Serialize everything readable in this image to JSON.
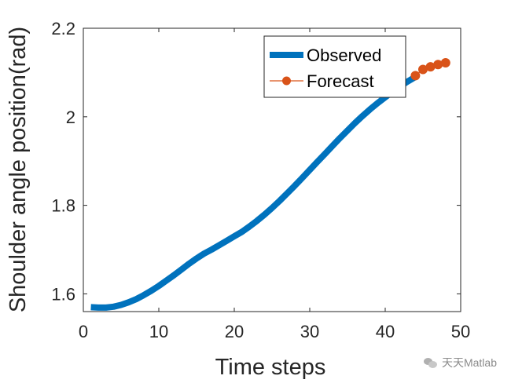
{
  "colors": {
    "observed": "#0072BD",
    "forecast": "#D95319",
    "axis": "#262626",
    "background": "#ffffff"
  },
  "watermark": {
    "text": "天天Matlab",
    "icon": "wechat-icon"
  },
  "chart_data": {
    "type": "line",
    "title": "",
    "xlabel": "Time steps",
    "ylabel": "Shoulder angle position(rad)",
    "xlim": [
      0,
      50
    ],
    "ylim": [
      1.56,
      2.2
    ],
    "xticks": [
      0,
      10,
      20,
      30,
      40,
      50
    ],
    "yticks": [
      1.6,
      1.8,
      2.0,
      2.2
    ],
    "xtick_labels": [
      "0",
      "10",
      "20",
      "30",
      "40",
      "50"
    ],
    "ytick_labels": [
      "1.6",
      "1.8",
      "2",
      "2.2"
    ],
    "grid": false,
    "legend": {
      "position": "top-right",
      "entries": [
        "Observed",
        "Forecast"
      ]
    },
    "series": [
      {
        "name": "Observed",
        "style": "line",
        "x": [
          1,
          2,
          3,
          4,
          5,
          6,
          7,
          8,
          9,
          10,
          11,
          12,
          13,
          14,
          15,
          16,
          17,
          18,
          19,
          20,
          21,
          22,
          23,
          24,
          25,
          26,
          27,
          28,
          29,
          30,
          31,
          32,
          33,
          34,
          35,
          36,
          37,
          38,
          39,
          40,
          41,
          42,
          43,
          44
        ],
        "y": [
          1.57,
          1.569,
          1.569,
          1.571,
          1.575,
          1.581,
          1.588,
          1.597,
          1.607,
          1.618,
          1.63,
          1.642,
          1.655,
          1.668,
          1.68,
          1.691,
          1.7,
          1.71,
          1.72,
          1.73,
          1.74,
          1.752,
          1.765,
          1.779,
          1.794,
          1.81,
          1.827,
          1.844,
          1.862,
          1.88,
          1.898,
          1.916,
          1.934,
          1.952,
          1.969,
          1.986,
          2.002,
          2.017,
          2.031,
          2.044,
          2.057,
          2.069,
          2.08,
          2.09
        ]
      },
      {
        "name": "Forecast",
        "style": "line-markers",
        "x": [
          44,
          45,
          46,
          47,
          48
        ],
        "y": [
          2.093,
          2.107,
          2.113,
          2.118,
          2.122
        ]
      }
    ]
  }
}
